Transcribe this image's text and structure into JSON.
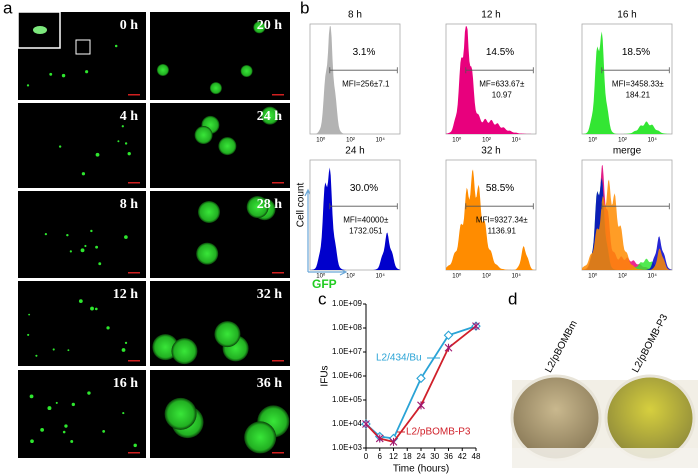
{
  "panels": {
    "a": {
      "label": "a",
      "times": [
        "0 h",
        "20 h",
        "4 h",
        "24 h",
        "8 h",
        "28 h",
        "12 h",
        "32 h",
        "16 h",
        "36 h"
      ]
    },
    "b": {
      "label": "b",
      "y_axis_label": "Cell count",
      "x_axis_label": "GFP",
      "x_tick_labels": [
        "10⁰",
        "10²",
        "10⁴"
      ],
      "histograms": [
        {
          "title": "8 h",
          "percent": "3.1%",
          "mfi": [
            "MFI=256±7.1"
          ],
          "color": "#b3b3b3"
        },
        {
          "title": "12 h",
          "percent": "14.5%",
          "mfi": [
            "MF=633.67±",
            "10.97"
          ],
          "color": "#e8007d"
        },
        {
          "title": "16 h",
          "percent": "18.5%",
          "mfi": [
            "MFI=3458.33±",
            "184.21"
          ],
          "color": "#33e633"
        },
        {
          "title": "24 h",
          "percent": "30.0%",
          "mfi": [
            "MFI=40000±",
            "1732.051"
          ],
          "color": "#0000cc"
        },
        {
          "title": "32 h",
          "percent": "58.5%",
          "mfi": [
            "MFI=9327.34±",
            "1136.91"
          ],
          "color": "#ff8c00"
        },
        {
          "title": "merge"
        }
      ]
    },
    "c": {
      "label": "c"
    },
    "d": {
      "label": "d",
      "samples": [
        "L2/pBOMBm",
        "L2/pBOMB-P3"
      ]
    }
  },
  "chart_data": {
    "type": "line",
    "xlabel": "Time (hours)",
    "ylabel": "IFUs",
    "x": [
      0,
      6,
      12,
      24,
      36,
      48
    ],
    "xlim": [
      0,
      48
    ],
    "xticks": [
      0,
      6,
      12,
      18,
      24,
      30,
      36,
      42,
      48
    ],
    "yscale": "log",
    "ylim": [
      1000,
      1000000000
    ],
    "yticks": [
      {
        "value": 1000,
        "label": "1.0E+03"
      },
      {
        "value": 10000,
        "label": "1.0E+04"
      },
      {
        "value": 100000,
        "label": "1.0E+05"
      },
      {
        "value": 1000000,
        "label": "1.0E+06"
      },
      {
        "value": 10000000,
        "label": "1.0E+07"
      },
      {
        "value": 100000000,
        "label": "1.0E+08"
      },
      {
        "value": 1000000000,
        "label": "1.0E+09"
      }
    ],
    "series": [
      {
        "name": "L2/434/Bu",
        "color": "#29a3d6",
        "marker": "diamond",
        "values": [
          10000,
          3000,
          2500,
          800000,
          50000000,
          120000000
        ]
      },
      {
        "name": "L2/pBOMB-P3",
        "color": "#d0202a",
        "marker": "star",
        "values": [
          10000,
          2500,
          1800,
          60000,
          15000000,
          120000000
        ]
      }
    ]
  }
}
